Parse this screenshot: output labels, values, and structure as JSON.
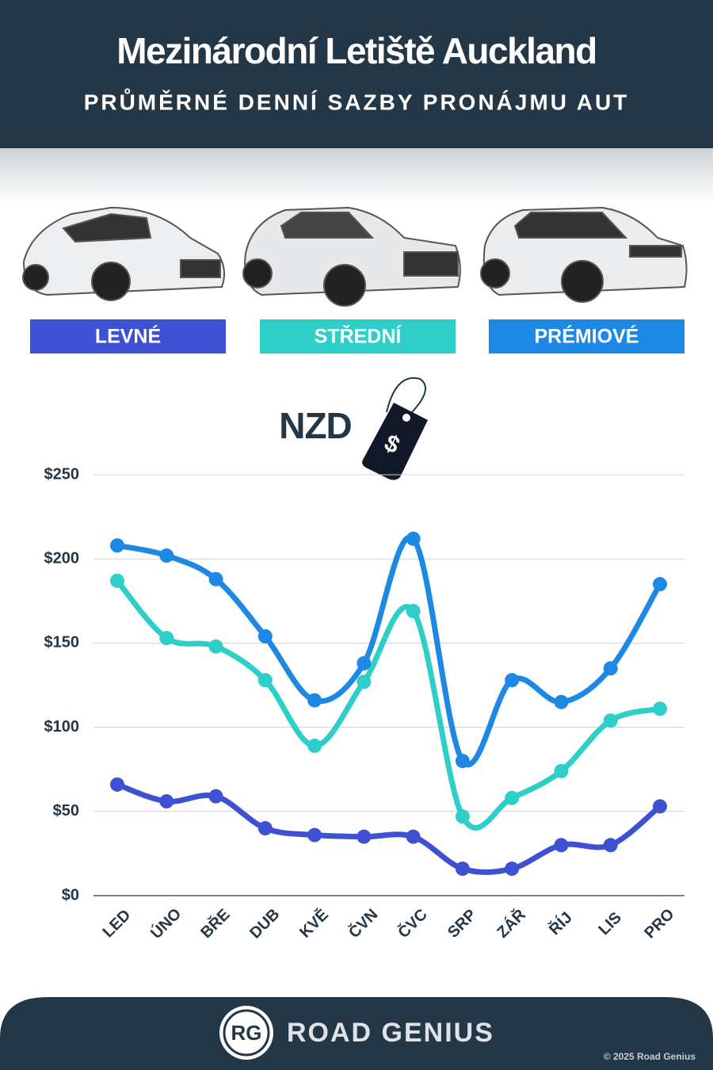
{
  "header": {
    "title": "Mezinárodní Letiště Auckland",
    "subtitle": "PRŮMĚRNÉ DENNÍ SAZBY PRONÁJMU AUT"
  },
  "chart_data": {
    "type": "line",
    "y_label": "NZD",
    "categories": [
      "LED",
      "ÚNO",
      "BŘE",
      "DUB",
      "KVĚ",
      "ČVN",
      "ČVC",
      "SRP",
      "ZÁŘ",
      "ŘÍJ",
      "LIS",
      "PRO"
    ],
    "series": [
      {
        "name": "LEVNÉ",
        "color": "#3f51d3",
        "values": [
          66,
          56,
          59,
          40,
          36,
          35,
          35,
          16,
          16,
          30,
          30,
          53
        ]
      },
      {
        "name": "STŘEDNÍ",
        "color": "#2ecfc8",
        "values": [
          187,
          153,
          148,
          128,
          89,
          127,
          169,
          47,
          58,
          74,
          104,
          111
        ]
      },
      {
        "name": "PRÉMIOVÉ",
        "color": "#1e88e5",
        "values": [
          208,
          202,
          188,
          154,
          116,
          138,
          212,
          80,
          128,
          115,
          135,
          185
        ]
      }
    ],
    "ylim": [
      0,
      250
    ],
    "yticks": [
      {
        "value": 0,
        "label": "$0"
      },
      {
        "value": 50,
        "label": "$50"
      },
      {
        "value": 100,
        "label": "$100"
      },
      {
        "value": 150,
        "label": "$150"
      },
      {
        "value": 200,
        "label": "$200"
      },
      {
        "value": 250,
        "label": "$250"
      }
    ],
    "grid": true
  },
  "footer": {
    "logo": "RG",
    "brand": "ROAD GENIUS",
    "copyright": "© 2025 Road Genius"
  }
}
